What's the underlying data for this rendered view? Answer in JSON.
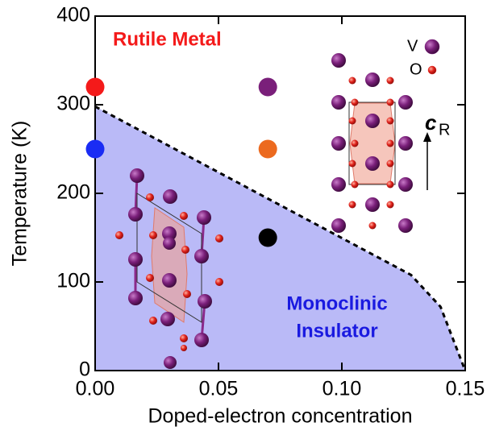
{
  "chart_data": {
    "type": "scatter",
    "xlabel": "Doped-electron concentration",
    "ylabel": "Temperature (K)",
    "xlim": [
      0,
      0.15
    ],
    "ylim": [
      0,
      400
    ],
    "xticks": [
      {
        "value": 0,
        "label": "0.00"
      },
      0.05,
      {
        "value": 0.1,
        "label": "0.10"
      },
      0.15
    ],
    "yticks": [
      0,
      100,
      200,
      300,
      400
    ],
    "x": [
      0,
      0,
      0.07,
      0.07,
      0.07
    ],
    "y": [
      320,
      250,
      320,
      250,
      150
    ],
    "colors": [
      "#f41a1a",
      "#1a2cf4",
      "#7a1f7a",
      "#ec6a1f",
      "#000000"
    ],
    "boundary": {
      "x": [
        0,
        0.128,
        0.14,
        0.15
      ],
      "y": [
        298,
        108,
        72,
        0
      ],
      "fill": "#babaf7",
      "color": "#000000"
    },
    "annotations": [
      {
        "text": "Rutile Metal",
        "color": "#f41a1a"
      },
      {
        "text": "Monoclinic",
        "color": "#1a1ae0"
      },
      {
        "text": "Insulator",
        "color": "#1a1ae0"
      }
    ],
    "legend": [
      {
        "name": "V",
        "color": "#7a1f7a"
      },
      {
        "name": "O",
        "color": "#e0221b"
      }
    ],
    "axis_arrow": {
      "text": "c",
      "subscript": "R"
    }
  }
}
